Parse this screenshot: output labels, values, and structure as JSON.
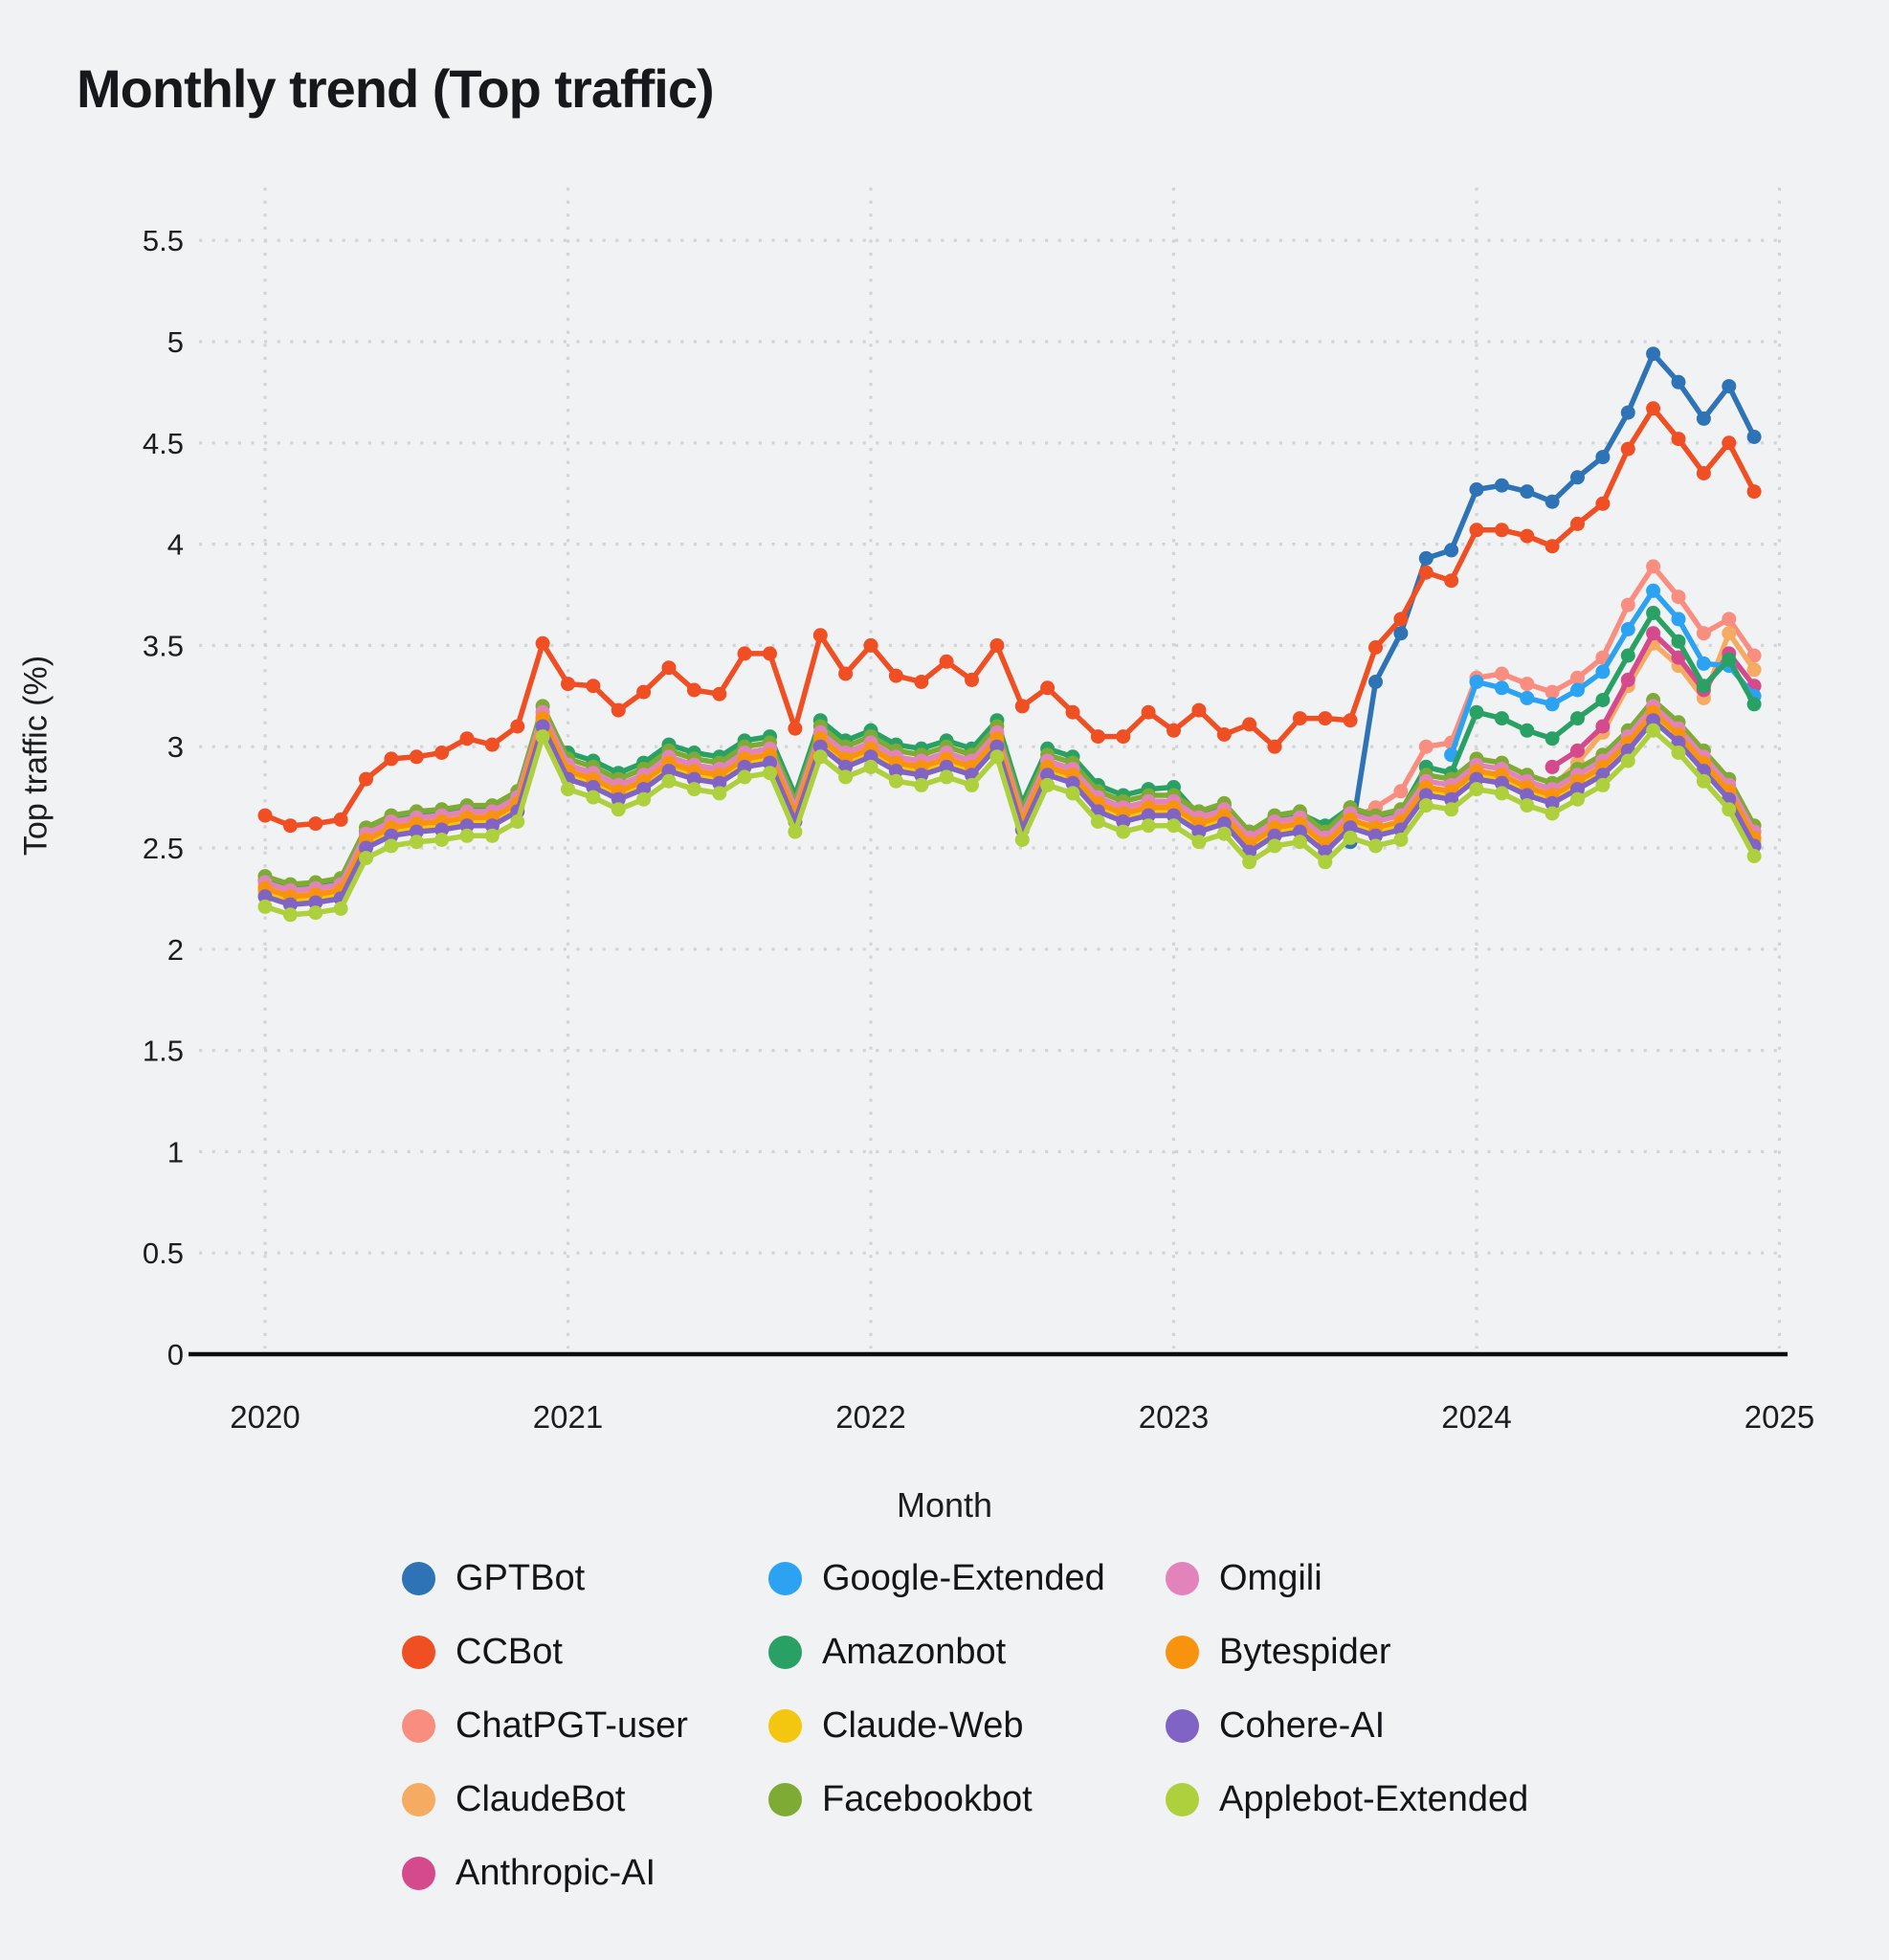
{
  "title": "Monthly trend (Top traffic)",
  "axes": {
    "x_label": "Month",
    "y_label": "Top traffic (%)",
    "x_tick_labels": [
      "2020",
      "2021",
      "2022",
      "2023",
      "2024",
      "2025"
    ],
    "y_tick_labels": [
      "0",
      "0.5",
      "1",
      "1.5",
      "2",
      "2.5",
      "3",
      "3.5",
      "4",
      "4.5",
      "5",
      "5.5"
    ]
  },
  "chart_data": {
    "type": "line",
    "title": "Monthly trend (Top traffic)",
    "xlabel": "Month",
    "ylabel": "Top traffic (%)",
    "x_start": "2020-01",
    "x_end": "2024-12",
    "n_months": 60,
    "x_ticks_years": [
      2020,
      2021,
      2022,
      2023,
      2024,
      2025
    ],
    "y_ticks": [
      0,
      0.5,
      1,
      1.5,
      2,
      2.5,
      3,
      3.5,
      4,
      4.5,
      5,
      5.5
    ],
    "ylim": [
      0,
      5.5
    ],
    "grid": "dotted",
    "legend_position": "bottom",
    "legend_columns": [
      [
        "GPTBot",
        "CCBot",
        "ChatPGT-user",
        "ClaudeBot",
        "Anthropic-AI"
      ],
      [
        "Google-Extended",
        "Amazonbot",
        "Claude-Web",
        "Facebookbot"
      ],
      [
        "Omgili",
        "Bytespider",
        "Cohere-AI",
        "Applebot-Extended"
      ]
    ],
    "series": [
      {
        "name": "GPTBot",
        "color": "#2e73b5",
        "values": [
          null,
          null,
          null,
          null,
          null,
          null,
          null,
          null,
          null,
          null,
          null,
          null,
          null,
          null,
          null,
          null,
          null,
          null,
          null,
          null,
          null,
          null,
          null,
          null,
          null,
          null,
          null,
          null,
          null,
          null,
          null,
          null,
          null,
          null,
          null,
          null,
          null,
          null,
          null,
          null,
          null,
          null,
          null,
          2.53,
          3.32,
          3.56,
          3.93,
          3.97,
          4.27,
          4.29,
          4.26,
          4.21,
          4.33,
          4.43,
          4.65,
          4.94,
          4.8,
          4.62,
          4.78,
          4.53
        ]
      },
      {
        "name": "CCBot",
        "color": "#f04e23",
        "values": [
          2.66,
          2.61,
          2.62,
          2.64,
          2.84,
          2.94,
          2.95,
          2.97,
          3.04,
          3.01,
          3.1,
          3.51,
          3.31,
          3.3,
          3.18,
          3.27,
          3.39,
          3.28,
          3.26,
          3.46,
          3.46,
          3.09,
          3.55,
          3.36,
          3.5,
          3.35,
          3.32,
          3.42,
          3.33,
          3.5,
          3.2,
          3.29,
          3.17,
          3.05,
          3.05,
          3.17,
          3.08,
          3.18,
          3.06,
          3.11,
          3.0,
          3.14,
          3.14,
          3.13,
          3.49,
          3.63,
          3.86,
          3.82,
          4.07,
          4.07,
          4.04,
          3.99,
          4.1,
          4.2,
          4.47,
          4.67,
          4.52,
          4.35,
          4.5,
          4.26
        ]
      },
      {
        "name": "ChatPGT-user",
        "color": "#f98e80",
        "values": [
          2.31,
          2.27,
          2.28,
          2.3,
          2.55,
          2.61,
          2.63,
          2.64,
          2.66,
          2.66,
          2.73,
          3.15,
          2.89,
          2.85,
          2.79,
          2.84,
          2.93,
          2.89,
          2.87,
          2.95,
          2.97,
          2.68,
          3.05,
          2.95,
          3.0,
          2.93,
          2.91,
          2.95,
          2.91,
          3.05,
          2.64,
          2.91,
          2.87,
          2.73,
          2.68,
          2.71,
          2.71,
          2.63,
          2.67,
          2.53,
          2.61,
          2.63,
          2.53,
          2.64,
          2.7,
          2.78,
          3.0,
          3.02,
          3.34,
          3.36,
          3.31,
          3.27,
          3.34,
          3.44,
          3.7,
          3.89,
          3.74,
          3.56,
          3.63,
          3.45
        ]
      },
      {
        "name": "ClaudeBot",
        "color": "#f6ab62",
        "values": [
          2.29,
          2.25,
          2.26,
          2.28,
          2.53,
          2.59,
          2.61,
          2.62,
          2.64,
          2.64,
          2.71,
          3.13,
          2.87,
          2.83,
          2.77,
          2.82,
          2.91,
          2.87,
          2.85,
          2.93,
          2.95,
          2.66,
          3.03,
          2.93,
          2.98,
          2.91,
          2.89,
          2.93,
          2.89,
          3.03,
          2.62,
          2.89,
          2.85,
          2.71,
          2.66,
          2.69,
          2.69,
          2.61,
          2.65,
          2.51,
          2.59,
          2.61,
          2.51,
          2.63,
          2.59,
          2.62,
          2.79,
          2.77,
          2.87,
          2.85,
          2.79,
          2.8,
          2.92,
          3.07,
          3.3,
          3.51,
          3.4,
          3.24,
          3.56,
          3.38
        ]
      },
      {
        "name": "Anthropic-AI",
        "color": "#d54a8d",
        "values": [
          null,
          null,
          null,
          null,
          null,
          null,
          null,
          null,
          null,
          null,
          null,
          null,
          null,
          null,
          null,
          null,
          null,
          null,
          null,
          null,
          null,
          null,
          null,
          null,
          null,
          null,
          null,
          null,
          null,
          null,
          null,
          null,
          null,
          null,
          null,
          null,
          null,
          null,
          null,
          null,
          null,
          null,
          null,
          null,
          null,
          null,
          null,
          null,
          null,
          null,
          null,
          2.9,
          2.98,
          3.1,
          3.33,
          3.56,
          3.44,
          3.28,
          3.46,
          3.3
        ]
      },
      {
        "name": "Google-Extended",
        "color": "#2ba3f2",
        "values": [
          null,
          null,
          null,
          null,
          null,
          null,
          null,
          null,
          null,
          null,
          null,
          null,
          null,
          null,
          null,
          null,
          null,
          null,
          null,
          null,
          null,
          null,
          null,
          null,
          null,
          null,
          null,
          null,
          null,
          null,
          null,
          null,
          null,
          null,
          null,
          null,
          null,
          null,
          null,
          null,
          null,
          null,
          null,
          null,
          null,
          null,
          null,
          2.96,
          3.32,
          3.29,
          3.24,
          3.21,
          3.28,
          3.37,
          3.58,
          3.77,
          3.63,
          3.41,
          3.4,
          3.25
        ]
      },
      {
        "name": "Amazonbot",
        "color": "#2aa164",
        "values": [
          2.34,
          2.3,
          2.31,
          2.33,
          2.58,
          2.64,
          2.66,
          2.67,
          2.69,
          2.69,
          2.76,
          3.1,
          2.97,
          2.93,
          2.87,
          2.92,
          3.01,
          2.97,
          2.95,
          3.03,
          3.05,
          2.76,
          3.13,
          3.03,
          3.08,
          3.01,
          2.99,
          3.03,
          2.99,
          3.13,
          2.72,
          2.99,
          2.95,
          2.81,
          2.76,
          2.79,
          2.8,
          2.66,
          2.71,
          2.58,
          2.65,
          2.67,
          2.61,
          2.7,
          2.65,
          2.68,
          2.9,
          2.87,
          3.17,
          3.14,
          3.08,
          3.04,
          3.14,
          3.23,
          3.45,
          3.66,
          3.52,
          3.3,
          3.43,
          3.21
        ]
      },
      {
        "name": "Claude-Web",
        "color": "#f3c70f",
        "values": [
          2.28,
          2.24,
          2.25,
          2.27,
          2.52,
          2.58,
          2.6,
          2.61,
          2.63,
          2.63,
          2.7,
          3.12,
          2.86,
          2.82,
          2.76,
          2.81,
          2.9,
          2.86,
          2.84,
          2.92,
          2.94,
          2.65,
          3.02,
          2.92,
          2.97,
          2.9,
          2.88,
          2.92,
          2.88,
          3.02,
          2.61,
          2.88,
          2.84,
          2.7,
          2.65,
          2.68,
          2.68,
          2.6,
          2.64,
          2.5,
          2.58,
          2.6,
          2.5,
          2.62,
          2.58,
          2.61,
          2.78,
          2.76,
          2.86,
          2.84,
          2.78,
          2.74,
          2.81,
          2.88,
          3.0,
          3.15,
          3.04,
          2.9,
          2.76,
          2.53
        ]
      },
      {
        "name": "Facebookbot",
        "color": "#7dab34",
        "values": [
          2.36,
          2.32,
          2.33,
          2.35,
          2.6,
          2.66,
          2.68,
          2.69,
          2.71,
          2.71,
          2.78,
          3.2,
          2.94,
          2.9,
          2.84,
          2.89,
          2.98,
          2.94,
          2.92,
          3.0,
          3.02,
          2.73,
          3.1,
          3.0,
          3.05,
          2.98,
          2.96,
          3.0,
          2.96,
          3.1,
          2.69,
          2.96,
          2.92,
          2.78,
          2.73,
          2.76,
          2.76,
          2.68,
          2.72,
          2.58,
          2.66,
          2.68,
          2.58,
          2.7,
          2.66,
          2.69,
          2.86,
          2.84,
          2.94,
          2.92,
          2.86,
          2.82,
          2.89,
          2.96,
          3.08,
          3.23,
          3.12,
          2.98,
          2.84,
          2.61
        ]
      },
      {
        "name": "Omgili",
        "color": "#e383bb",
        "values": [
          2.33,
          2.29,
          2.3,
          2.32,
          2.57,
          2.63,
          2.65,
          2.66,
          2.68,
          2.68,
          2.75,
          3.17,
          2.91,
          2.87,
          2.81,
          2.86,
          2.95,
          2.91,
          2.89,
          2.97,
          2.99,
          2.7,
          3.07,
          2.97,
          3.02,
          2.95,
          2.93,
          2.97,
          2.93,
          3.07,
          2.66,
          2.93,
          2.89,
          2.75,
          2.7,
          2.73,
          2.73,
          2.65,
          2.69,
          2.55,
          2.63,
          2.65,
          2.55,
          2.67,
          2.63,
          2.66,
          2.83,
          2.81,
          2.91,
          2.89,
          2.83,
          2.79,
          2.86,
          2.93,
          3.05,
          3.2,
          3.09,
          2.95,
          2.81,
          2.58
        ]
      },
      {
        "name": "Bytespider",
        "color": "#f8930d",
        "values": [
          2.3,
          2.26,
          2.27,
          2.29,
          2.54,
          2.6,
          2.62,
          2.63,
          2.65,
          2.65,
          2.72,
          3.14,
          2.88,
          2.84,
          2.78,
          2.83,
          2.92,
          2.88,
          2.86,
          2.94,
          2.96,
          2.67,
          3.04,
          2.94,
          2.99,
          2.92,
          2.9,
          2.94,
          2.9,
          3.04,
          2.63,
          2.9,
          2.86,
          2.72,
          2.67,
          2.7,
          2.7,
          2.62,
          2.66,
          2.52,
          2.6,
          2.62,
          2.52,
          2.64,
          2.6,
          2.63,
          2.8,
          2.78,
          2.88,
          2.86,
          2.8,
          2.76,
          2.83,
          2.9,
          3.02,
          3.17,
          3.06,
          2.92,
          2.78,
          2.55
        ]
      },
      {
        "name": "Cohere-AI",
        "color": "#7f63c5",
        "values": [
          2.26,
          2.22,
          2.23,
          2.25,
          2.5,
          2.56,
          2.58,
          2.59,
          2.61,
          2.61,
          2.68,
          3.1,
          2.84,
          2.8,
          2.74,
          2.79,
          2.88,
          2.84,
          2.82,
          2.9,
          2.92,
          2.63,
          3.0,
          2.9,
          2.95,
          2.88,
          2.86,
          2.9,
          2.86,
          3.0,
          2.59,
          2.86,
          2.82,
          2.68,
          2.63,
          2.66,
          2.66,
          2.58,
          2.62,
          2.48,
          2.56,
          2.58,
          2.48,
          2.6,
          2.56,
          2.59,
          2.76,
          2.74,
          2.84,
          2.82,
          2.76,
          2.72,
          2.79,
          2.86,
          2.98,
          3.13,
          3.02,
          2.88,
          2.74,
          2.51
        ]
      },
      {
        "name": "Applebot-Extended",
        "color": "#aed03c",
        "values": [
          2.21,
          2.17,
          2.18,
          2.2,
          2.45,
          2.51,
          2.53,
          2.54,
          2.56,
          2.56,
          2.63,
          3.05,
          2.79,
          2.75,
          2.69,
          2.74,
          2.83,
          2.79,
          2.77,
          2.85,
          2.87,
          2.58,
          2.95,
          2.85,
          2.9,
          2.83,
          2.81,
          2.85,
          2.81,
          2.95,
          2.54,
          2.81,
          2.77,
          2.63,
          2.58,
          2.61,
          2.61,
          2.53,
          2.57,
          2.43,
          2.51,
          2.53,
          2.43,
          2.55,
          2.51,
          2.54,
          2.71,
          2.69,
          2.79,
          2.77,
          2.71,
          2.67,
          2.74,
          2.81,
          2.93,
          3.08,
          2.97,
          2.83,
          2.69,
          2.46
        ]
      }
    ]
  },
  "colors": {
    "background": "#f1f2f4",
    "gridline": "#d3d4d8",
    "axis_line": "#0d0d0f",
    "text": "#1c1d20"
  }
}
